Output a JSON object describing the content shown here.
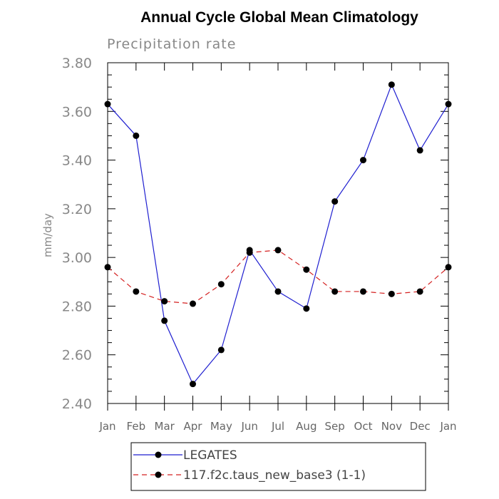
{
  "chart_data": {
    "type": "line",
    "title": "Annual Cycle Global Mean Climatology",
    "subtitle": "Precipitation rate",
    "ylabel": "mm/day",
    "xlabel": "",
    "categories": [
      "Jan",
      "Feb",
      "Mar",
      "Apr",
      "May",
      "Jun",
      "Jul",
      "Aug",
      "Sep",
      "Oct",
      "Nov",
      "Dec",
      "Jan"
    ],
    "ylim": [
      2.4,
      3.8
    ],
    "yticks": [
      "2.40",
      "2.60",
      "2.80",
      "3.00",
      "3.20",
      "3.40",
      "3.60",
      "3.80"
    ],
    "grid": false,
    "legend_position": "bottom",
    "series": [
      {
        "name": "LEGATES",
        "color": "#1f1fd0",
        "dash": "solid",
        "values": [
          3.63,
          3.5,
          2.74,
          2.48,
          2.62,
          3.03,
          2.86,
          2.79,
          3.23,
          3.4,
          3.71,
          3.44,
          3.63
        ]
      },
      {
        "name": "117.f2c.taus_new_base3 (1-1)",
        "color": "#d42020",
        "dash": "dashed",
        "values": [
          2.96,
          2.86,
          2.82,
          2.81,
          2.89,
          3.02,
          3.03,
          2.95,
          2.86,
          2.86,
          2.85,
          2.86,
          2.96
        ]
      }
    ]
  }
}
